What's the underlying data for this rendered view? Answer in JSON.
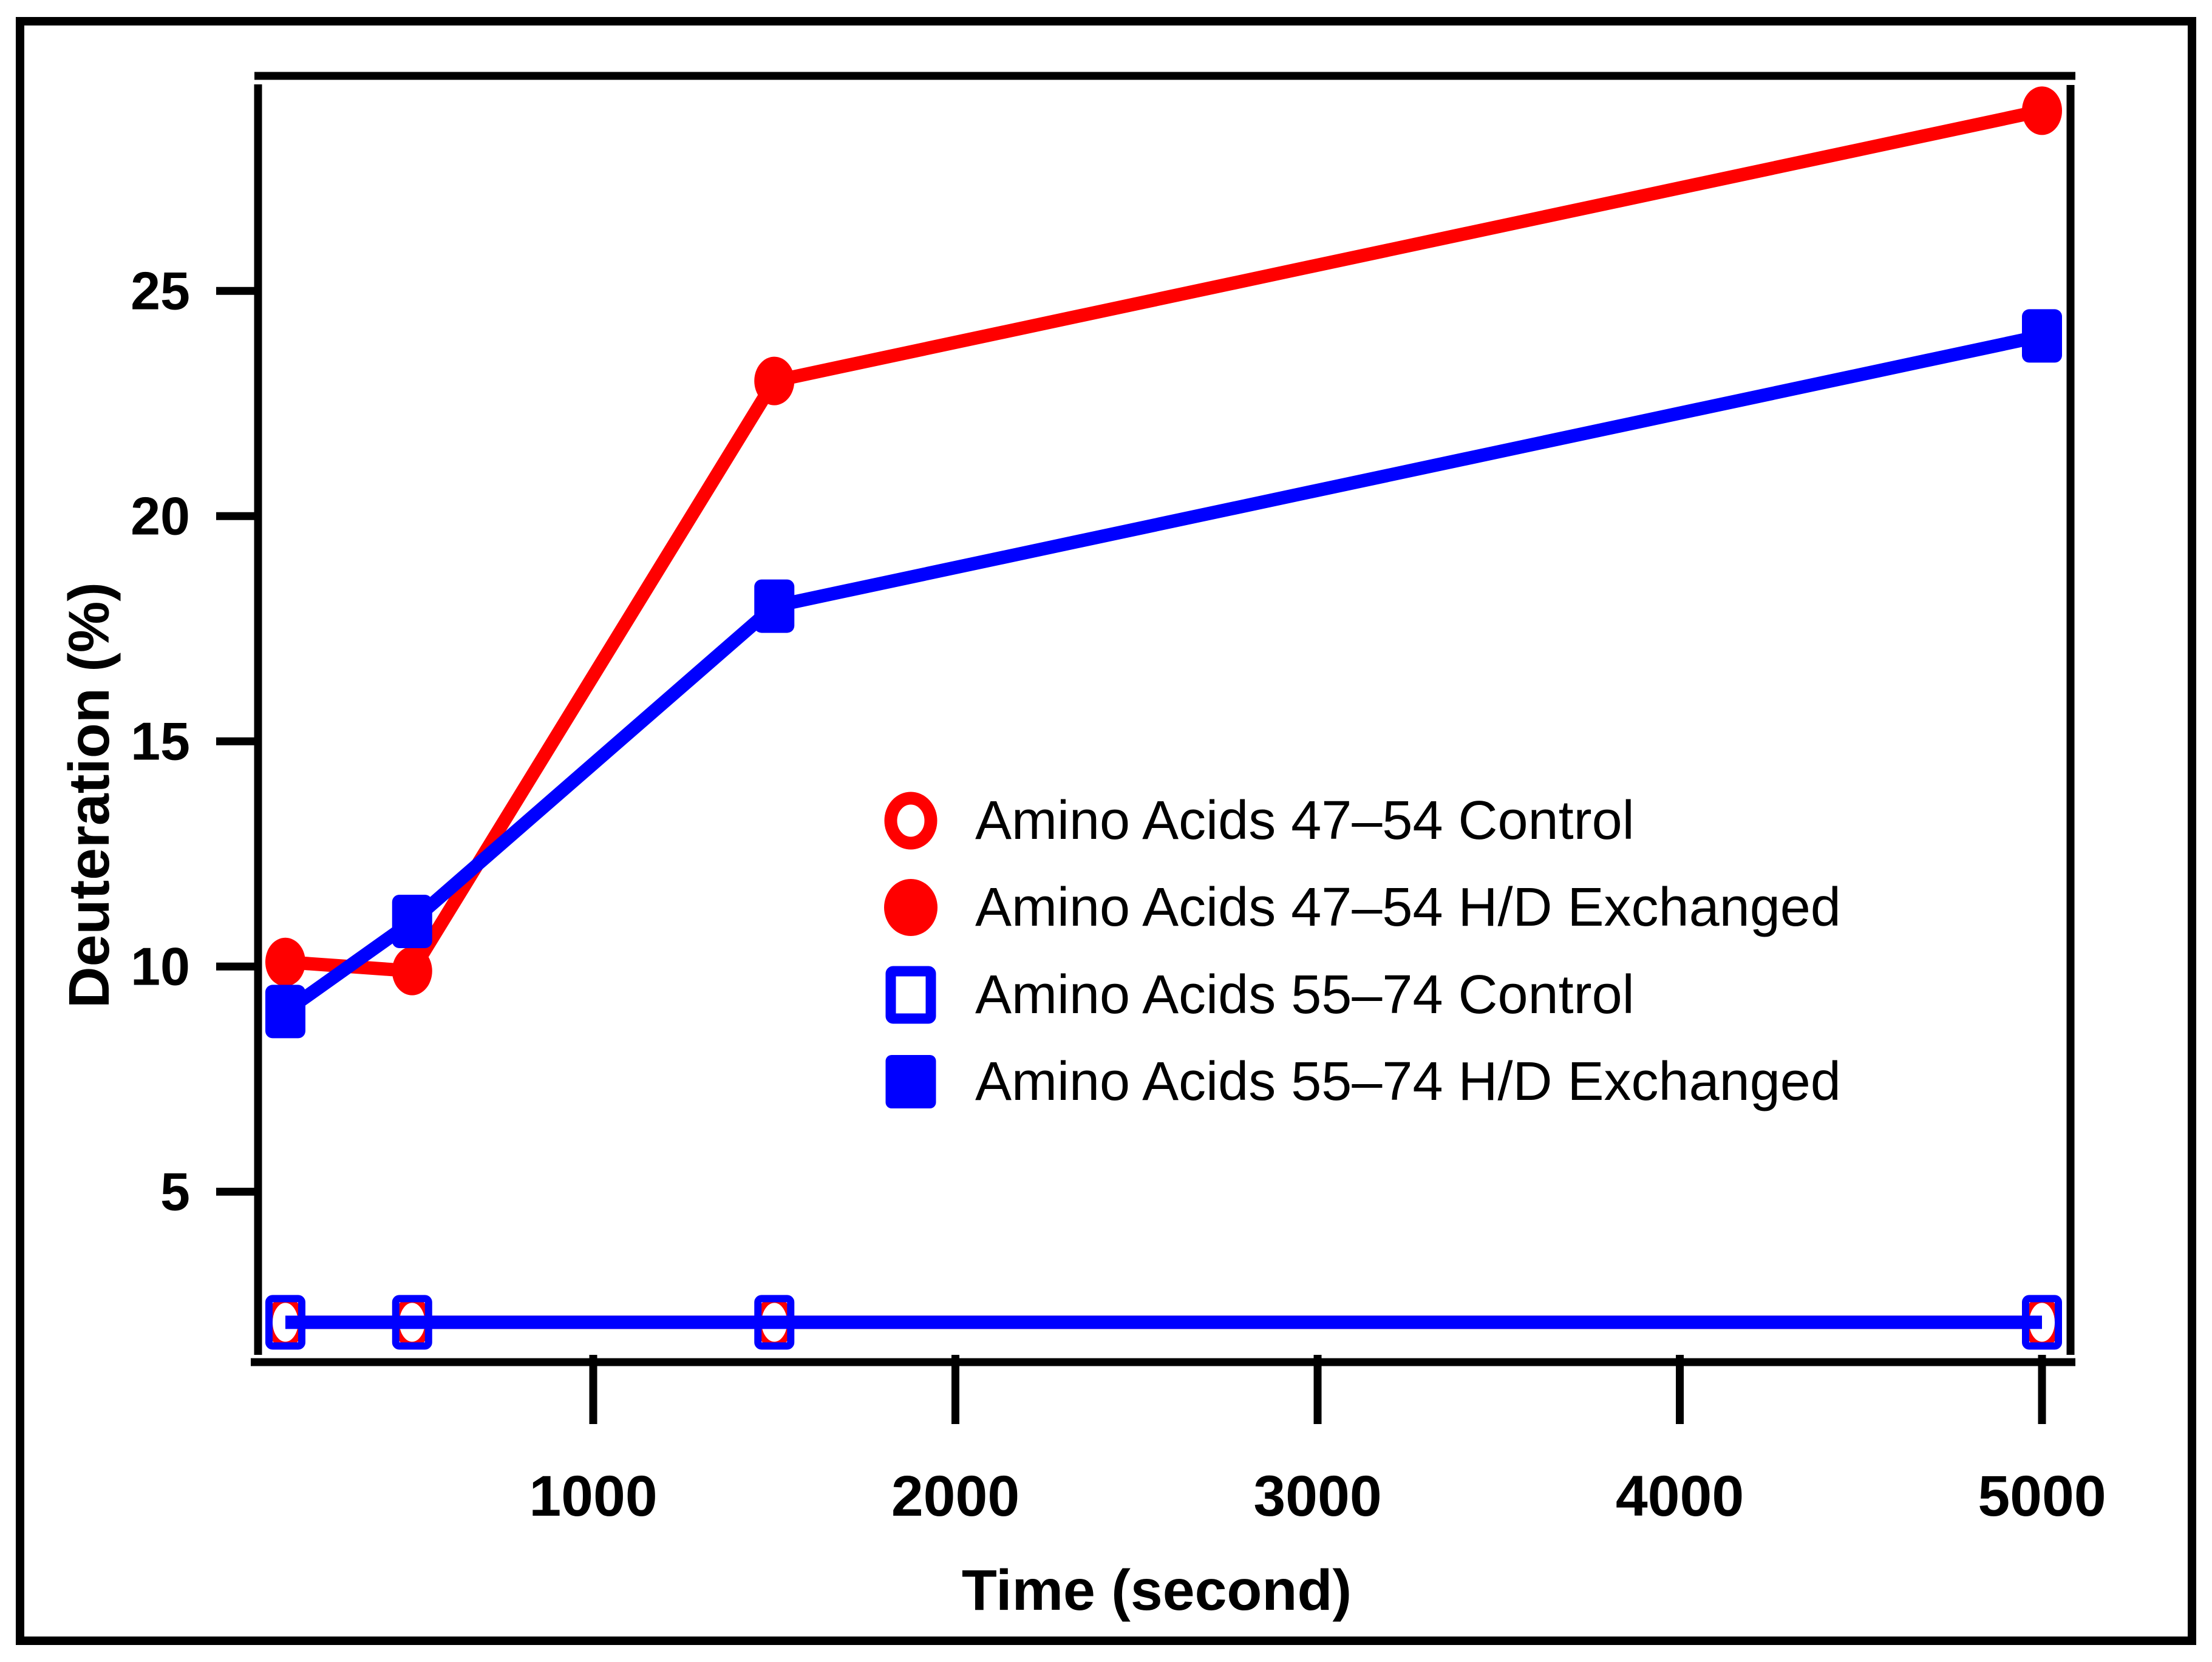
{
  "figure": {
    "background_color": "#ffffff",
    "border_color": "#000000",
    "accent_red": "#ff0000",
    "accent_blue": "#0000ff"
  },
  "chart_data": {
    "type": "line",
    "title": "",
    "xlabel": "Time (second)",
    "ylabel": "Deuteration (%)",
    "x": [
      150,
      500,
      1500,
      5000
    ],
    "x_tick_values": [
      1000,
      2000,
      3000,
      4000,
      5000
    ],
    "x_tick_labels": [
      "1000",
      "2000",
      "3000",
      "4000",
      "5000"
    ],
    "y_tick_values": [
      5,
      10,
      15,
      20,
      25
    ],
    "y_tick_labels": [
      "5",
      "10",
      "15",
      "20",
      "25"
    ],
    "xlim": [
      75,
      5080
    ],
    "ylim": [
      1.2,
      29.5
    ],
    "grid": false,
    "legend_position": "inside-center-right",
    "series": [
      {
        "name": "Amino Acids 47–54 Control",
        "color": "#ff0000",
        "marker": "open-circle",
        "values": [
          2.1,
          2.1,
          2.1,
          2.1
        ]
      },
      {
        "name": "Amino Acids 47–54 H/D Exchanged",
        "color": "#ff0000",
        "marker": "filled-circle",
        "values": [
          10.1,
          9.9,
          23,
          29
        ]
      },
      {
        "name": "Amino Acids 55–74 Control",
        "color": "#0000ff",
        "marker": "open-square",
        "values": [
          2.1,
          2.1,
          2.1,
          2.1
        ]
      },
      {
        "name": "Amino Acids 55–74 H/D Exchanged",
        "color": "#0000ff",
        "marker": "filled-square",
        "values": [
          9,
          11,
          18,
          24
        ]
      }
    ],
    "legend": [
      "Amino Acids 47–54 Control",
      "Amino Acids 47–54 H/D Exchanged",
      "Amino Acids 55–74 Control",
      "Amino Acids 55–74 H/D Exchanged"
    ]
  }
}
